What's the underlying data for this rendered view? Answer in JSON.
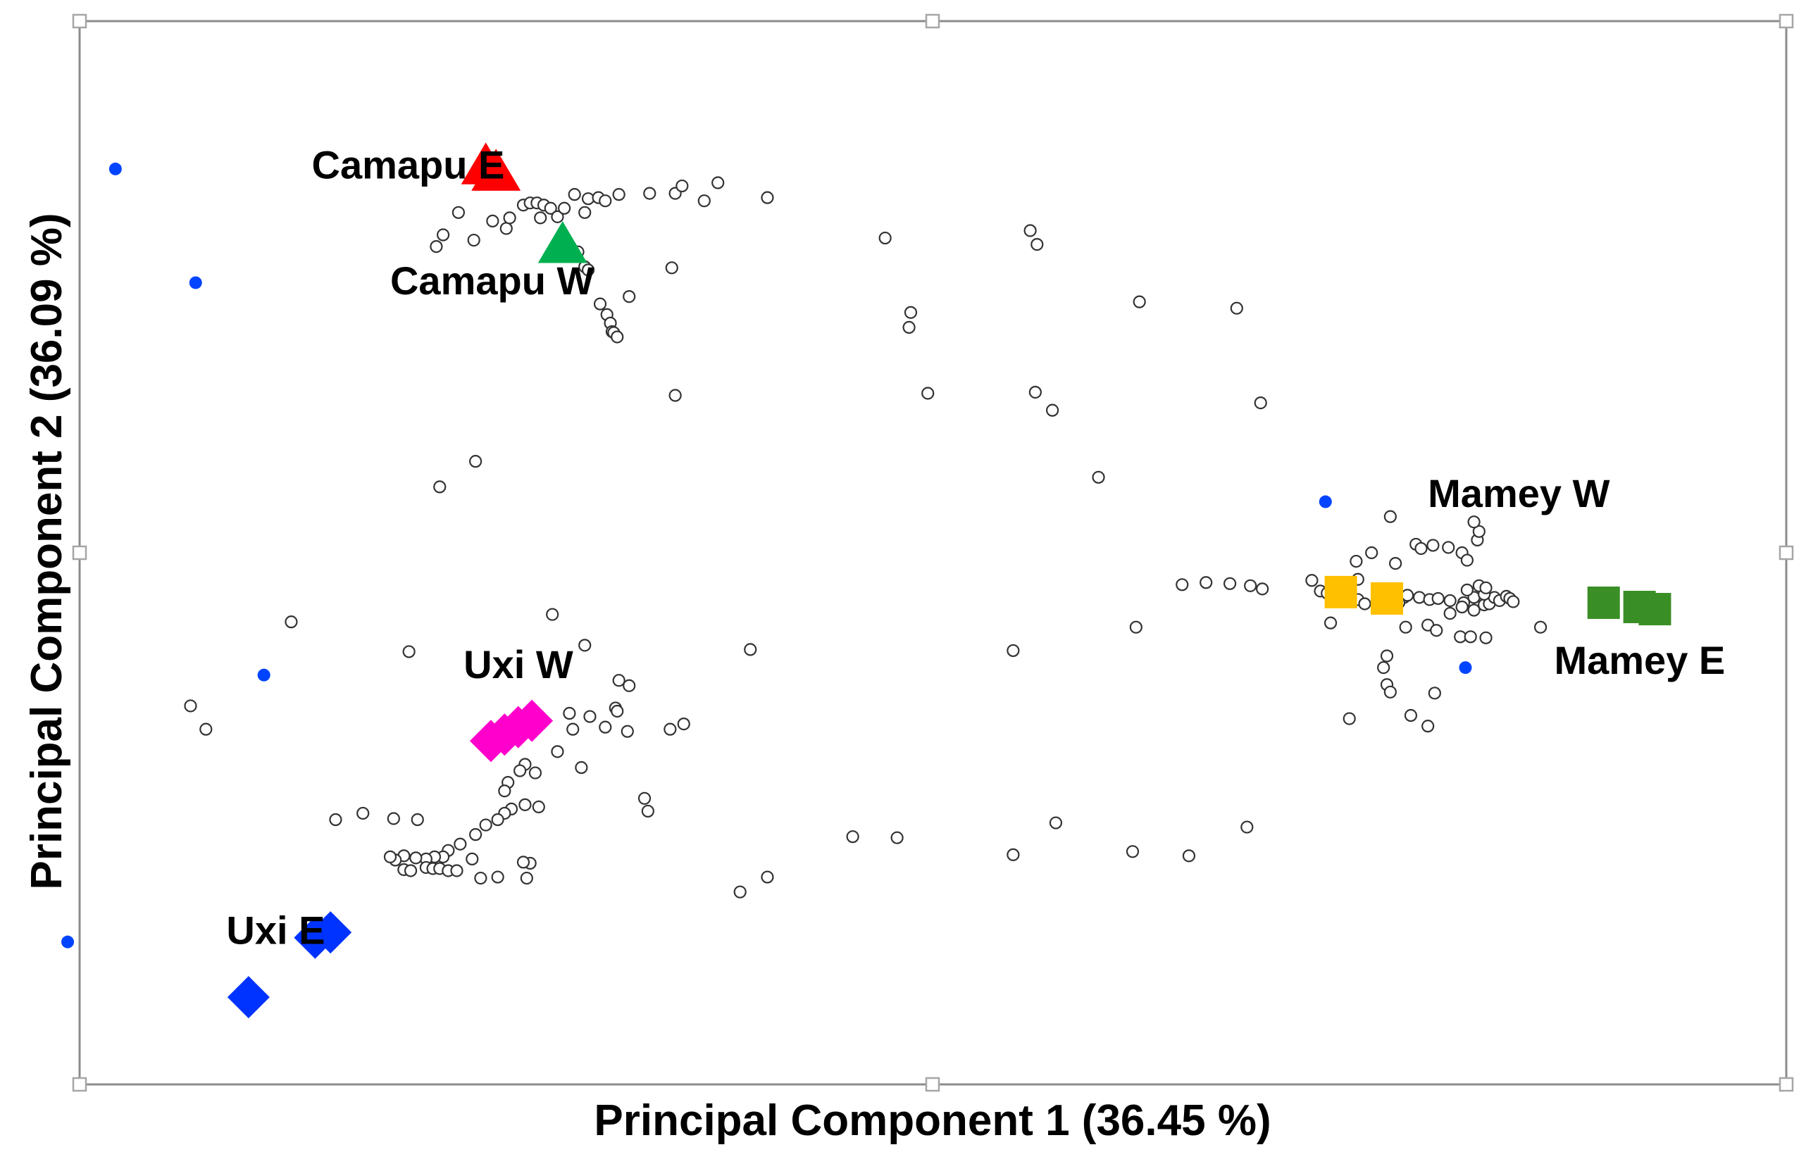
{
  "chart_data": {
    "type": "scatter",
    "title": "",
    "xlabel": "Principal Component 1 (36.45 %)",
    "ylabel": "Principal Component 2 (36.09 %)",
    "xlim": [
      0,
      100
    ],
    "ylim": [
      0,
      100
    ],
    "grid": false,
    "legend": "none",
    "group_labels": [
      {
        "text": "Camapu E",
        "x": 13.6,
        "y": 85.2
      },
      {
        "text": "Camapu W",
        "x": 18.2,
        "y": 74.3
      },
      {
        "text": "Uxi W",
        "x": 22.5,
        "y": 38.2
      },
      {
        "text": "Uxi E",
        "x": 8.6,
        "y": 13.2
      },
      {
        "text": "Mamey W",
        "x": 79.0,
        "y": 54.3
      },
      {
        "text": "Mamey E",
        "x": 86.4,
        "y": 38.6
      }
    ],
    "series": [
      {
        "marker": "triangle",
        "color": "#ff0000",
        "points": [
          [
            23.8,
            86.4
          ],
          [
            24.4,
            85.8
          ]
        ]
      },
      {
        "marker": "triangle",
        "color": "#00b050",
        "points": [
          [
            28.3,
            79.0
          ]
        ]
      },
      {
        "marker": "diamond",
        "color": "#ff00cc",
        "points": [
          [
            24.1,
            32.3
          ],
          [
            24.9,
            32.9
          ],
          [
            25.7,
            33.6
          ],
          [
            26.5,
            34.2
          ]
        ]
      },
      {
        "marker": "diamond",
        "color": "#0033ff",
        "points": [
          [
            13.8,
            13.8
          ],
          [
            14.7,
            14.3
          ],
          [
            9.9,
            8.2
          ]
        ]
      },
      {
        "marker": "square",
        "color": "#ffc000",
        "points": [
          [
            73.9,
            46.3
          ],
          [
            76.6,
            45.7
          ]
        ]
      },
      {
        "marker": "square",
        "color": "#3a8e26",
        "points": [
          [
            89.3,
            45.3
          ],
          [
            91.4,
            44.9
          ],
          [
            92.3,
            44.7
          ]
        ]
      },
      {
        "marker": "dot",
        "color": "#0044ff",
        "points": [
          [
            2.1,
            86.1
          ],
          [
            6.8,
            75.4
          ],
          [
            10.8,
            38.5
          ],
          [
            -0.7,
            13.4
          ],
          [
            73.0,
            54.8
          ],
          [
            81.2,
            39.2
          ]
        ]
      },
      {
        "marker": "open-circle",
        "color": "#333333",
        "points": [
          [
            20.9,
            78.8
          ],
          [
            21.3,
            79.9
          ],
          [
            22.2,
            82.0
          ],
          [
            23.1,
            79.4
          ],
          [
            24.2,
            81.2
          ],
          [
            25.0,
            80.5
          ],
          [
            25.2,
            81.5
          ],
          [
            26.0,
            82.7
          ],
          [
            26.4,
            82.9
          ],
          [
            26.8,
            82.9
          ],
          [
            27.2,
            82.7
          ],
          [
            27.0,
            81.5
          ],
          [
            27.6,
            82.4
          ],
          [
            28.0,
            81.6
          ],
          [
            28.4,
            82.4
          ],
          [
            29.0,
            83.7
          ],
          [
            29.6,
            82.0
          ],
          [
            29.2,
            78.3
          ],
          [
            29.6,
            76.9
          ],
          [
            29.8,
            76.6
          ],
          [
            30.5,
            73.4
          ],
          [
            30.9,
            72.4
          ],
          [
            31.1,
            71.6
          ],
          [
            31.2,
            70.8
          ],
          [
            31.3,
            70.7
          ],
          [
            31.5,
            70.3
          ],
          [
            32.2,
            74.1
          ],
          [
            29.8,
            83.3
          ],
          [
            30.4,
            83.4
          ],
          [
            30.8,
            83.1
          ],
          [
            31.6,
            83.7
          ],
          [
            33.4,
            83.8
          ],
          [
            34.9,
            83.8
          ],
          [
            35.3,
            84.5
          ],
          [
            36.6,
            83.1
          ],
          [
            37.4,
            84.8
          ],
          [
            40.3,
            83.4
          ],
          [
            34.7,
            76.8
          ],
          [
            34.9,
            64.8
          ],
          [
            48.6,
            71.2
          ],
          [
            48.7,
            72.6
          ],
          [
            49.7,
            65.0
          ],
          [
            47.2,
            79.6
          ],
          [
            55.7,
            80.3
          ],
          [
            56.1,
            79.0
          ],
          [
            56.0,
            65.1
          ],
          [
            57.0,
            63.4
          ],
          [
            67.8,
            73.0
          ],
          [
            69.2,
            64.1
          ],
          [
            62.1,
            73.6
          ],
          [
            59.7,
            57.1
          ],
          [
            21.1,
            56.2
          ],
          [
            23.2,
            58.6
          ],
          [
            12.4,
            43.5
          ],
          [
            6.5,
            35.6
          ],
          [
            7.4,
            33.4
          ],
          [
            19.3,
            40.7
          ],
          [
            27.7,
            44.2
          ],
          [
            29.6,
            41.3
          ],
          [
            31.6,
            38.0
          ],
          [
            32.2,
            37.5
          ],
          [
            31.4,
            35.4
          ],
          [
            31.5,
            35.1
          ],
          [
            29.9,
            34.6
          ],
          [
            28.7,
            34.9
          ],
          [
            30.8,
            33.6
          ],
          [
            32.1,
            33.2
          ],
          [
            34.6,
            33.4
          ],
          [
            35.4,
            33.9
          ],
          [
            28.9,
            33.4
          ],
          [
            26.1,
            30.1
          ],
          [
            25.1,
            28.4
          ],
          [
            24.9,
            27.6
          ],
          [
            25.8,
            29.5
          ],
          [
            26.7,
            29.3
          ],
          [
            29.4,
            29.8
          ],
          [
            28.0,
            31.3
          ],
          [
            26.9,
            26.1
          ],
          [
            33.3,
            25.7
          ],
          [
            33.1,
            26.9
          ],
          [
            26.1,
            26.3
          ],
          [
            25.3,
            25.9
          ],
          [
            24.9,
            25.5
          ],
          [
            24.5,
            24.9
          ],
          [
            23.8,
            24.4
          ],
          [
            23.2,
            23.5
          ],
          [
            22.3,
            22.6
          ],
          [
            21.6,
            22.0
          ],
          [
            21.3,
            21.4
          ],
          [
            20.8,
            21.4
          ],
          [
            20.3,
            21.2
          ],
          [
            19.7,
            21.3
          ],
          [
            19.0,
            21.5
          ],
          [
            18.5,
            21.1
          ],
          [
            18.2,
            21.4
          ],
          [
            19.0,
            20.2
          ],
          [
            19.4,
            20.1
          ],
          [
            20.3,
            20.4
          ],
          [
            20.7,
            20.3
          ],
          [
            21.1,
            20.3
          ],
          [
            21.6,
            20.1
          ],
          [
            22.1,
            20.1
          ],
          [
            23.0,
            21.2
          ],
          [
            23.5,
            19.4
          ],
          [
            26.2,
            19.4
          ],
          [
            26.4,
            20.8
          ],
          [
            26.0,
            20.9
          ],
          [
            24.5,
            19.5
          ],
          [
            18.4,
            25.0
          ],
          [
            19.8,
            24.9
          ],
          [
            15.0,
            24.9
          ],
          [
            16.6,
            25.5
          ],
          [
            39.3,
            40.9
          ],
          [
            40.3,
            19.5
          ],
          [
            38.7,
            18.1
          ],
          [
            47.9,
            23.2
          ],
          [
            45.3,
            23.3
          ],
          [
            54.7,
            21.6
          ],
          [
            61.7,
            21.9
          ],
          [
            57.2,
            24.6
          ],
          [
            65.0,
            21.5
          ],
          [
            68.4,
            24.2
          ],
          [
            54.7,
            40.8
          ],
          [
            61.9,
            43.0
          ],
          [
            64.6,
            47.0
          ],
          [
            66.0,
            47.2
          ],
          [
            67.4,
            47.1
          ],
          [
            68.6,
            46.9
          ],
          [
            69.3,
            46.6
          ],
          [
            72.2,
            47.4
          ],
          [
            72.7,
            46.4
          ],
          [
            73.1,
            46.2
          ],
          [
            73.5,
            46.0
          ],
          [
            73.9,
            46.2
          ],
          [
            74.4,
            45.8
          ],
          [
            74.9,
            47.5
          ],
          [
            74.8,
            49.2
          ],
          [
            75.7,
            50.0
          ],
          [
            76.5,
            46.4
          ],
          [
            77.6,
            45.8
          ],
          [
            78.5,
            45.8
          ],
          [
            79.1,
            45.6
          ],
          [
            79.6,
            45.7
          ],
          [
            80.3,
            45.5
          ],
          [
            81.1,
            45.3
          ],
          [
            81.7,
            45.8
          ],
          [
            82.3,
            45.1
          ],
          [
            82.6,
            45.2
          ],
          [
            82.9,
            45.8
          ],
          [
            83.2,
            45.5
          ],
          [
            83.6,
            45.9
          ],
          [
            83.8,
            45.7
          ],
          [
            84.0,
            45.4
          ],
          [
            82.3,
            46.1
          ],
          [
            81.3,
            46.5
          ],
          [
            82.0,
            46.9
          ],
          [
            82.4,
            46.7
          ],
          [
            81.7,
            44.6
          ],
          [
            81.0,
            44.9
          ],
          [
            80.3,
            44.3
          ],
          [
            79.0,
            43.2
          ],
          [
            79.5,
            42.7
          ],
          [
            80.9,
            42.1
          ],
          [
            81.5,
            42.1
          ],
          [
            82.4,
            42.0
          ],
          [
            77.8,
            46.0
          ],
          [
            77.3,
            45.3
          ],
          [
            77.7,
            43.0
          ],
          [
            74.9,
            45.6
          ],
          [
            75.3,
            45.2
          ],
          [
            76.6,
            40.3
          ],
          [
            76.4,
            39.2
          ],
          [
            76.6,
            37.6
          ],
          [
            76.8,
            36.9
          ],
          [
            78.0,
            34.7
          ],
          [
            79.0,
            33.7
          ],
          [
            79.4,
            36.8
          ],
          [
            77.1,
            49.0
          ],
          [
            78.3,
            50.8
          ],
          [
            78.6,
            50.4
          ],
          [
            79.3,
            50.7
          ],
          [
            80.2,
            50.5
          ],
          [
            81.0,
            50.0
          ],
          [
            81.3,
            49.3
          ],
          [
            81.9,
            51.2
          ],
          [
            82.0,
            52.0
          ],
          [
            76.8,
            53.4
          ],
          [
            81.7,
            52.9
          ],
          [
            74.4,
            34.4
          ],
          [
            85.6,
            43.0
          ],
          [
            73.3,
            43.4
          ]
        ]
      }
    ]
  }
}
